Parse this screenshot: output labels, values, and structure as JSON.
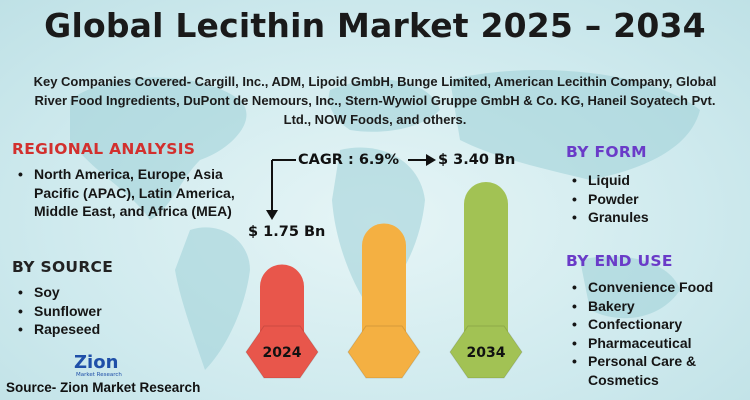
{
  "title": "Global Lecithin Market 2025 – 2034",
  "companies": "Key Companies Covered- Cargill, Inc., ADM, Lipoid GmbH, Bunge Limited, American Lecithin Company, Global River Food Ingredients, DuPont de Nemours, Inc., Stern-Wywiol Gruppe GmbH & Co. KG, Haneil Soyatech Pvt. Ltd., NOW Foods, and others.",
  "regional": {
    "heading": "REGIONAL ANALYSIS",
    "items": [
      "North America, Europe, Asia Pacific (APAC), Latin America, Middle East, and Africa (MEA)"
    ]
  },
  "source_seg": {
    "heading": "BY SOURCE",
    "items": [
      "Soy",
      "Sunflower",
      "Rapeseed"
    ]
  },
  "form": {
    "heading": "BY FORM",
    "items": [
      "Liquid",
      "Powder",
      "Granules"
    ]
  },
  "end_use": {
    "heading": "BY END USE",
    "items": [
      "Convenience Food",
      "Bakery",
      "Confectionary",
      "Pharmaceutical",
      "Personal Care & Cosmetics"
    ]
  },
  "chart_data": {
    "type": "bar",
    "categories": [
      "2024",
      "",
      "2034"
    ],
    "values": [
      1.75,
      2.57,
      3.4
    ],
    "data_labels": [
      "$ 1.75 Bn",
      "",
      "$ 3.40 Bn"
    ],
    "annotation": "CAGR : 6.9%",
    "colors": [
      "#e8564b",
      "#f4b042",
      "#a2c254"
    ]
  },
  "logo": {
    "name": "Zion",
    "sub": "Market Research"
  },
  "source_text": "Source- Zion Market Research"
}
